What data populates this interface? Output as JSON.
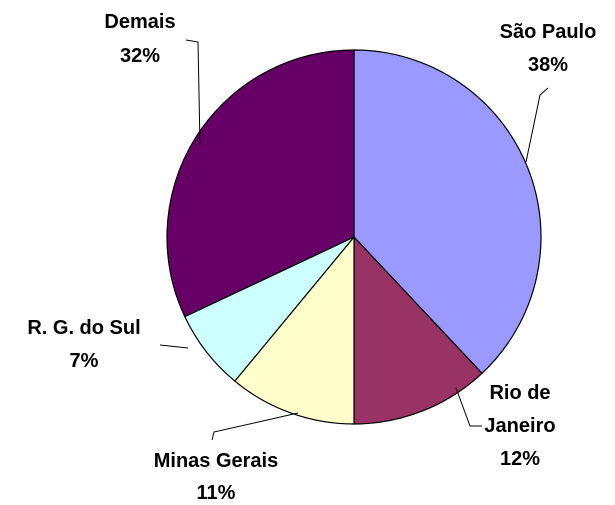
{
  "chart_data": {
    "type": "pie",
    "categories": [
      "São Paulo",
      "Rio de Janeiro",
      "Minas Gerais",
      "R. G. do Sul",
      "Demais"
    ],
    "values": [
      38,
      12,
      11,
      7,
      32
    ],
    "value_labels": [
      "38%",
      "12%",
      "11%",
      "7%",
      "32%"
    ],
    "colors": [
      "#9999ff",
      "#993366",
      "#ffffcc",
      "#ccffff",
      "#660066"
    ]
  }
}
